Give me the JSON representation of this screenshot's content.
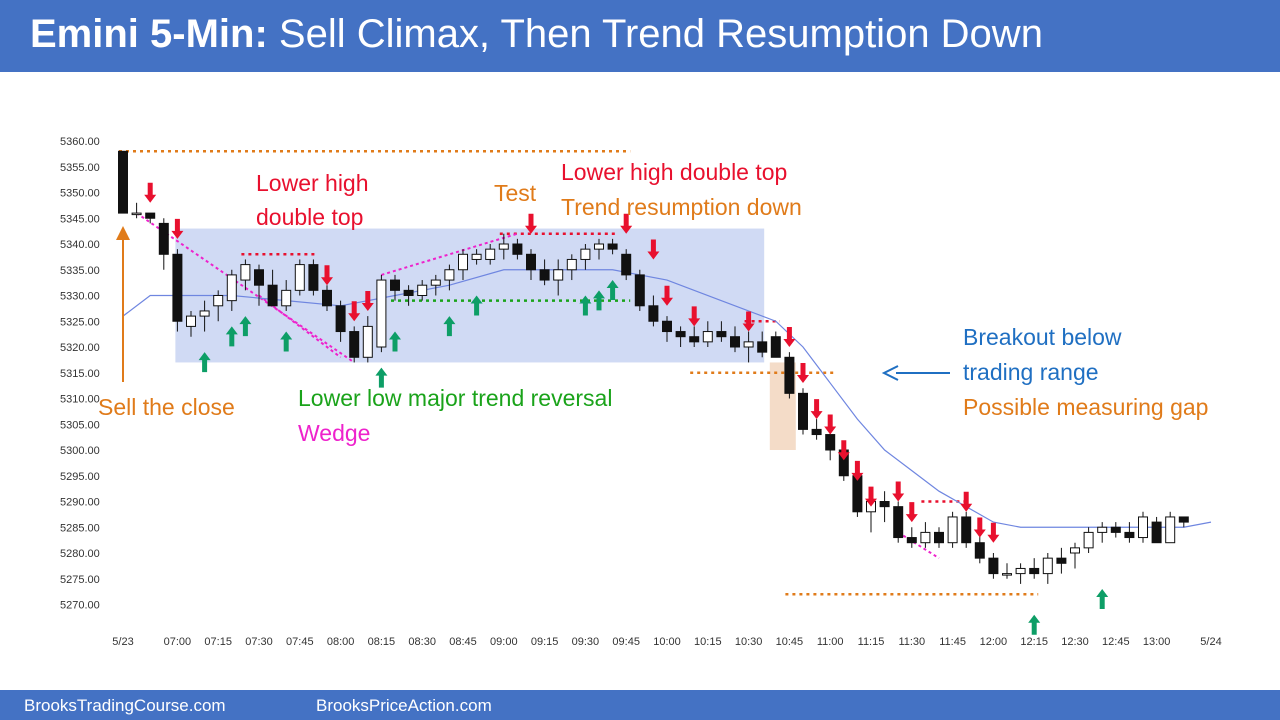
{
  "title": {
    "bold": "Emini 5-Min:",
    "rest": " Sell Climax, Then Trend Resumption Down"
  },
  "footer": {
    "left": "BrooksTradingCourse.com",
    "right": "BrooksPriceAction.com"
  },
  "colors": {
    "header": "#4472c4",
    "red": "#e8102e",
    "green": "#0d9e66",
    "orange": "#e07b1a",
    "blue": "#1f6fc2",
    "magenta": "#ee22cc",
    "dkgreen": "#1aa31a",
    "range": "#c8d4f2",
    "ema": "#6f86e0"
  },
  "annotations": {
    "lower_high_1": "Lower high",
    "lower_high_2": "double top",
    "test": "Test",
    "lhdt": "Lower high double top",
    "trend_resumption": "Trend resumption down",
    "sell_close": "Sell the close",
    "llmtr": "Lower low major trend reversal",
    "wedge": "Wedge",
    "breakout_1": "Breakout below",
    "breakout_2": "trading range",
    "gap": "Possible measuring gap"
  },
  "chart_data": {
    "type": "candlestick",
    "ylim": [
      5268,
      5362
    ],
    "y_ticks": [
      "5360.00",
      "5355.00",
      "5350.00",
      "5345.00",
      "5340.00",
      "5335.00",
      "5330.00",
      "5325.00",
      "5320.00",
      "5315.00",
      "5310.00",
      "5305.00",
      "5300.00",
      "5295.00",
      "5290.00",
      "5285.00",
      "5280.00",
      "5275.00",
      "5270.00"
    ],
    "x_ticks": [
      {
        "bar": 0,
        "label": "5/23"
      },
      {
        "bar": 4,
        "label": "07:00"
      },
      {
        "bar": 7,
        "label": "07:15"
      },
      {
        "bar": 10,
        "label": "07:30"
      },
      {
        "bar": 13,
        "label": "07:45"
      },
      {
        "bar": 16,
        "label": "08:00"
      },
      {
        "bar": 19,
        "label": "08:15"
      },
      {
        "bar": 22,
        "label": "08:30"
      },
      {
        "bar": 25,
        "label": "08:45"
      },
      {
        "bar": 28,
        "label": "09:00"
      },
      {
        "bar": 31,
        "label": "09:15"
      },
      {
        "bar": 34,
        "label": "09:30"
      },
      {
        "bar": 37,
        "label": "09:45"
      },
      {
        "bar": 40,
        "label": "10:00"
      },
      {
        "bar": 43,
        "label": "10:15"
      },
      {
        "bar": 46,
        "label": "10:30"
      },
      {
        "bar": 49,
        "label": "10:45"
      },
      {
        "bar": 52,
        "label": "11:00"
      },
      {
        "bar": 55,
        "label": "11:15"
      },
      {
        "bar": 58,
        "label": "11:30"
      },
      {
        "bar": 61,
        "label": "11:45"
      },
      {
        "bar": 64,
        "label": "12:00"
      },
      {
        "bar": 67,
        "label": "12:15"
      },
      {
        "bar": 70,
        "label": "12:30"
      },
      {
        "bar": 73,
        "label": "12:45"
      },
      {
        "bar": 76,
        "label": "13:00"
      },
      {
        "bar": 80,
        "label": "5/24"
      }
    ],
    "ohlc": [
      [
        5358,
        5358,
        5346,
        5346
      ],
      [
        5346,
        5348,
        5345,
        5346
      ],
      [
        5346,
        5346,
        5344,
        5345
      ],
      [
        5344,
        5345,
        5335,
        5338
      ],
      [
        5338,
        5339,
        5323,
        5325
      ],
      [
        5324,
        5327,
        5322,
        5326
      ],
      [
        5326,
        5329,
        5323,
        5327
      ],
      [
        5328,
        5331,
        5325,
        5330
      ],
      [
        5329,
        5335,
        5327,
        5334
      ],
      [
        5333,
        5337,
        5331,
        5336
      ],
      [
        5335,
        5336,
        5328,
        5332
      ],
      [
        5332,
        5335,
        5328,
        5328
      ],
      [
        5328,
        5333,
        5327,
        5331
      ],
      [
        5331,
        5337,
        5330,
        5336
      ],
      [
        5336,
        5337,
        5330,
        5331
      ],
      [
        5331,
        5332,
        5327,
        5328
      ],
      [
        5328,
        5329,
        5321,
        5323
      ],
      [
        5323,
        5324,
        5317,
        5318
      ],
      [
        5318,
        5326,
        5317,
        5324
      ],
      [
        5320,
        5334,
        5319,
        5333
      ],
      [
        5333,
        5334,
        5329,
        5331
      ],
      [
        5331,
        5332,
        5328,
        5330
      ],
      [
        5330,
        5333,
        5329,
        5332
      ],
      [
        5332,
        5334,
        5330,
        5333
      ],
      [
        5333,
        5336,
        5331,
        5335
      ],
      [
        5335,
        5339,
        5333,
        5338
      ],
      [
        5337,
        5339,
        5336,
        5338
      ],
      [
        5337,
        5340,
        5336,
        5339
      ],
      [
        5339,
        5342,
        5337,
        5340
      ],
      [
        5340,
        5341,
        5337,
        5338
      ],
      [
        5338,
        5339,
        5333,
        5335
      ],
      [
        5335,
        5337,
        5332,
        5333
      ],
      [
        5333,
        5337,
        5330,
        5335
      ],
      [
        5335,
        5338,
        5333,
        5337
      ],
      [
        5337,
        5340,
        5335,
        5339
      ],
      [
        5339,
        5341,
        5337,
        5340
      ],
      [
        5340,
        5341,
        5338,
        5339
      ],
      [
        5338,
        5339,
        5333,
        5334
      ],
      [
        5334,
        5335,
        5327,
        5328
      ],
      [
        5328,
        5330,
        5324,
        5325
      ],
      [
        5325,
        5326,
        5321,
        5323
      ],
      [
        5323,
        5324,
        5320,
        5322
      ],
      [
        5322,
        5324,
        5320,
        5321
      ],
      [
        5321,
        5325,
        5320,
        5323
      ],
      [
        5323,
        5325,
        5321,
        5322
      ],
      [
        5322,
        5324,
        5319,
        5320
      ],
      [
        5320,
        5323,
        5317,
        5321
      ],
      [
        5321,
        5323,
        5318,
        5319
      ],
      [
        5322,
        5323,
        5318,
        5318
      ],
      [
        5318,
        5319,
        5310,
        5311
      ],
      [
        5311,
        5312,
        5303,
        5304
      ],
      [
        5304,
        5306,
        5302,
        5303
      ],
      [
        5303,
        5305,
        5298,
        5300
      ],
      [
        5300,
        5301,
        5294,
        5295
      ],
      [
        5295,
        5297,
        5287,
        5288
      ],
      [
        5288,
        5291,
        5284,
        5290
      ],
      [
        5290,
        5292,
        5286,
        5289
      ],
      [
        5289,
        5290,
        5282,
        5283
      ],
      [
        5283,
        5285,
        5281,
        5282
      ],
      [
        5282,
        5286,
        5281,
        5284
      ],
      [
        5284,
        5285,
        5281,
        5282
      ],
      [
        5282,
        5288,
        5281,
        5287
      ],
      [
        5287,
        5288,
        5281,
        5282
      ],
      [
        5282,
        5284,
        5278,
        5279
      ],
      [
        5279,
        5280,
        5275,
        5276
      ],
      [
        5276,
        5278,
        5275,
        5276
      ],
      [
        5276,
        5278,
        5274,
        5277
      ],
      [
        5277,
        5279,
        5275,
        5276
      ],
      [
        5276,
        5280,
        5274,
        5279
      ],
      [
        5279,
        5281,
        5276,
        5278
      ],
      [
        5280,
        5282,
        5277,
        5281
      ],
      [
        5281,
        5285,
        5280,
        5284
      ],
      [
        5284,
        5286,
        5282,
        5285
      ],
      [
        5285,
        5286,
        5283,
        5284
      ],
      [
        5284,
        5286,
        5282,
        5283
      ],
      [
        5283,
        5288,
        5282,
        5287
      ],
      [
        5286,
        5287,
        5282,
        5282
      ],
      [
        5282,
        5288,
        5282,
        5287
      ],
      [
        5287,
        5287,
        5285,
        5286
      ]
    ],
    "ema": [
      [
        0,
        5326
      ],
      [
        2,
        5330
      ],
      [
        4,
        5330
      ],
      [
        8,
        5330
      ],
      [
        12,
        5329
      ],
      [
        16,
        5328
      ],
      [
        20,
        5330
      ],
      [
        24,
        5332
      ],
      [
        28,
        5335
      ],
      [
        32,
        5335
      ],
      [
        36,
        5335
      ],
      [
        40,
        5333
      ],
      [
        44,
        5329
      ],
      [
        48,
        5325
      ],
      [
        50,
        5320
      ],
      [
        52,
        5313
      ],
      [
        54,
        5306
      ],
      [
        56,
        5300
      ],
      [
        58,
        5296
      ],
      [
        60,
        5292
      ],
      [
        62,
        5289
      ],
      [
        64,
        5286
      ],
      [
        66,
        5285
      ],
      [
        70,
        5285
      ],
      [
        74,
        5285
      ],
      [
        78,
        5285
      ],
      [
        80,
        5286
      ]
    ],
    "trading_range": [
      5317,
      5343
    ],
    "levels": [
      {
        "price": 5358,
        "from": 0,
        "to": 37,
        "color": "orange"
      },
      {
        "price": 5338,
        "from": 9,
        "to": 14,
        "color": "red"
      },
      {
        "price": 5342,
        "from": 28,
        "to": 36,
        "color": "red"
      },
      {
        "price": 5329,
        "from": 20,
        "to": 37,
        "color": "dkgreen"
      },
      {
        "price": 5325,
        "from": 46,
        "to": 48,
        "color": "red"
      },
      {
        "price": 5315,
        "from": 42,
        "to": 52,
        "color": "orange"
      },
      {
        "price": 5290,
        "from": 59,
        "to": 62,
        "color": "red"
      },
      {
        "price": 5272,
        "from": 49,
        "to": 67,
        "color": "orange"
      }
    ]
  }
}
